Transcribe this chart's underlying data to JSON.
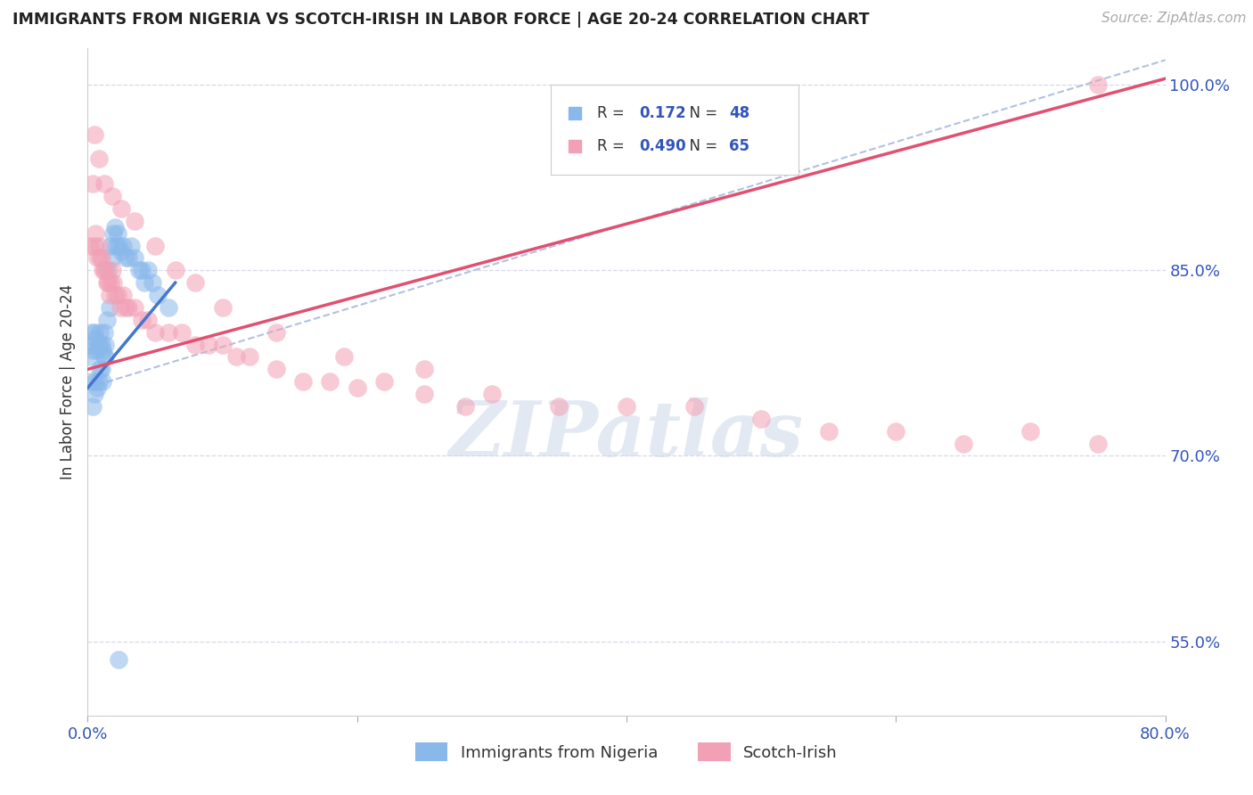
{
  "title": "IMMIGRANTS FROM NIGERIA VS SCOTCH-IRISH IN LABOR FORCE | AGE 20-24 CORRELATION CHART",
  "source": "Source: ZipAtlas.com",
  "ylabel": "In Labor Force | Age 20-24",
  "legend_label_1": "Immigrants from Nigeria",
  "legend_label_2": "Scotch-Irish",
  "R1": 0.172,
  "N1": 48,
  "R2": 0.49,
  "N2": 65,
  "xlim": [
    0.0,
    0.8
  ],
  "ylim": [
    0.49,
    1.03
  ],
  "xticks": [
    0.0,
    0.2,
    0.4,
    0.6,
    0.8
  ],
  "xticklabels": [
    "0.0%",
    "",
    "",
    "",
    "80.0%"
  ],
  "yticks": [
    0.55,
    0.7,
    0.85,
    1.0
  ],
  "yticklabels": [
    "55.0%",
    "70.0%",
    "85.0%",
    "100.0%"
  ],
  "color_nigeria": "#89b8eb",
  "color_scotch": "#f2a0b5",
  "color_line_nigeria": "#4477cc",
  "color_line_scotch": "#e05070",
  "color_dashed": "#aabbdd",
  "background": "#ffffff",
  "grid_color": "#d8d8e8",
  "watermark_color": "#ccd8e8",
  "nigeria_x": [
    0.001,
    0.002,
    0.003,
    0.003,
    0.004,
    0.004,
    0.005,
    0.005,
    0.006,
    0.006,
    0.007,
    0.007,
    0.008,
    0.008,
    0.009,
    0.009,
    0.01,
    0.01,
    0.011,
    0.011,
    0.012,
    0.012,
    0.013,
    0.013,
    0.014,
    0.015,
    0.016,
    0.017,
    0.018,
    0.019,
    0.02,
    0.021,
    0.022,
    0.023,
    0.025,
    0.026,
    0.028,
    0.03,
    0.032,
    0.035,
    0.038,
    0.04,
    0.042,
    0.045,
    0.048,
    0.052,
    0.06,
    0.023
  ],
  "nigeria_y": [
    0.78,
    0.79,
    0.76,
    0.8,
    0.74,
    0.785,
    0.75,
    0.8,
    0.76,
    0.795,
    0.755,
    0.785,
    0.76,
    0.79,
    0.77,
    0.8,
    0.77,
    0.79,
    0.76,
    0.785,
    0.78,
    0.8,
    0.78,
    0.79,
    0.81,
    0.85,
    0.82,
    0.87,
    0.86,
    0.88,
    0.885,
    0.87,
    0.88,
    0.87,
    0.865,
    0.87,
    0.86,
    0.86,
    0.87,
    0.86,
    0.85,
    0.85,
    0.84,
    0.85,
    0.84,
    0.83,
    0.82,
    0.535
  ],
  "scotch_x": [
    0.002,
    0.004,
    0.005,
    0.006,
    0.007,
    0.008,
    0.009,
    0.01,
    0.011,
    0.012,
    0.013,
    0.014,
    0.015,
    0.016,
    0.017,
    0.018,
    0.019,
    0.02,
    0.022,
    0.024,
    0.026,
    0.028,
    0.03,
    0.035,
    0.04,
    0.045,
    0.05,
    0.06,
    0.07,
    0.08,
    0.09,
    0.1,
    0.11,
    0.12,
    0.14,
    0.16,
    0.18,
    0.2,
    0.22,
    0.25,
    0.28,
    0.3,
    0.35,
    0.4,
    0.45,
    0.5,
    0.55,
    0.6,
    0.65,
    0.7,
    0.75,
    0.005,
    0.008,
    0.012,
    0.018,
    0.025,
    0.035,
    0.05,
    0.065,
    0.08,
    0.1,
    0.14,
    0.19,
    0.25,
    0.75
  ],
  "scotch_y": [
    0.87,
    0.92,
    0.87,
    0.88,
    0.86,
    0.87,
    0.86,
    0.86,
    0.85,
    0.85,
    0.85,
    0.84,
    0.84,
    0.83,
    0.84,
    0.85,
    0.84,
    0.83,
    0.83,
    0.82,
    0.83,
    0.82,
    0.82,
    0.82,
    0.81,
    0.81,
    0.8,
    0.8,
    0.8,
    0.79,
    0.79,
    0.79,
    0.78,
    0.78,
    0.77,
    0.76,
    0.76,
    0.755,
    0.76,
    0.75,
    0.74,
    0.75,
    0.74,
    0.74,
    0.74,
    0.73,
    0.72,
    0.72,
    0.71,
    0.72,
    0.71,
    0.96,
    0.94,
    0.92,
    0.91,
    0.9,
    0.89,
    0.87,
    0.85,
    0.84,
    0.82,
    0.8,
    0.78,
    0.77,
    1.0
  ],
  "nig_line_x": [
    0.0,
    0.065
  ],
  "nig_line_y": [
    0.755,
    0.84
  ],
  "scotch_line_x": [
    0.0,
    0.8
  ],
  "scotch_line_y": [
    0.77,
    1.005
  ],
  "dash_line_x": [
    0.0,
    0.8
  ],
  "dash_line_y": [
    0.755,
    1.02
  ]
}
